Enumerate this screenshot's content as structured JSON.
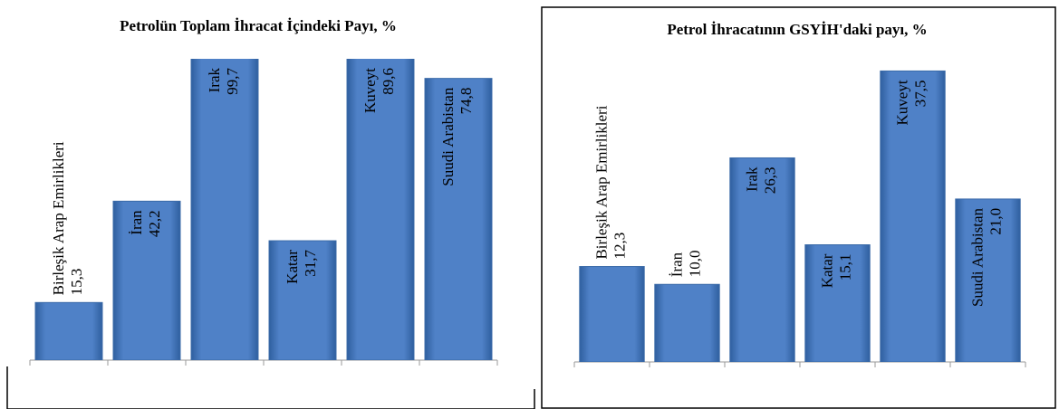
{
  "chart_data": [
    {
      "type": "bar",
      "title": "Petrolün Toplam İhracat İçindeki Payı, %",
      "categories": [
        "Birleşik Arap Emirlikleri",
        "İran",
        "Irak",
        "Katar",
        "Kuveyt",
        "Suudi Arabistan"
      ],
      "values": [
        15.3,
        42.2,
        99.7,
        31.7,
        89.6,
        74.8
      ],
      "value_labels": [
        "15,3",
        "42,2",
        "99,7",
        "31,7",
        "89,6",
        "74,8"
      ],
      "color": "#4f81c7",
      "ylim": [
        0,
        80
      ]
    },
    {
      "type": "bar",
      "title": "Petrol İhracatının GSYİH'daki payı,  %",
      "categories": [
        "Birleşik Arap Emirlikleri",
        "İran",
        "Irak",
        "Katar",
        "Kuveyt",
        "Suudi Arabistan"
      ],
      "values": [
        12.3,
        10.0,
        26.3,
        15.1,
        37.5,
        21.0
      ],
      "value_labels": [
        "12,3",
        "10,0",
        "26,3",
        "15,1",
        "37,5",
        "21,0"
      ],
      "color": "#4f81c7",
      "ylim": [
        0,
        40
      ]
    }
  ]
}
